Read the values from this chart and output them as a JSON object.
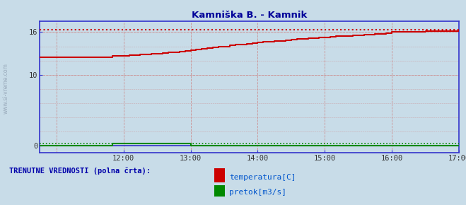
{
  "title": "Kamniška B. - Kamnik",
  "title_color": "#000099",
  "bg_color": "#c8dce8",
  "plot_bg_color": "#c8dce8",
  "xmin": 10.75,
  "xmax": 17.0,
  "ymin": -1.0,
  "ymax": 17.5,
  "xtick_positions": [
    12,
    13,
    14,
    15,
    16,
    17
  ],
  "xtick_labels": [
    "12:00",
    "13:00",
    "14:00",
    "15:00",
    "16:00",
    "17:00"
  ],
  "ytick_positions": [
    0,
    10,
    16
  ],
  "ytick_labels": [
    "0",
    "10",
    "16"
  ],
  "temp_color": "#cc0000",
  "flow_color": "#008800",
  "axis_color": "#3333cc",
  "grid_color_h": "#cc8888",
  "grid_color_v": "#cc8888",
  "watermark_color": "#99aabb",
  "legend_title": "TRENUTNE VREDNOSTI (polna črta):",
  "legend_label_temp": "temperatura[C]",
  "legend_label_flow": "pretok[m3/s]",
  "temp_x": [
    10.75,
    11.0,
    11.083,
    11.167,
    11.25,
    11.333,
    11.417,
    11.5,
    11.583,
    11.667,
    11.75,
    11.833,
    11.917,
    12.0,
    12.083,
    12.167,
    12.25,
    12.333,
    12.417,
    12.5,
    12.583,
    12.667,
    12.75,
    12.833,
    12.917,
    13.0,
    13.083,
    13.167,
    13.25,
    13.333,
    13.417,
    13.5,
    13.583,
    13.667,
    13.75,
    13.833,
    13.917,
    14.0,
    14.083,
    14.167,
    14.25,
    14.333,
    14.417,
    14.5,
    14.583,
    14.667,
    14.75,
    14.833,
    14.917,
    15.0,
    15.083,
    15.167,
    15.25,
    15.333,
    15.417,
    15.5,
    15.583,
    15.667,
    15.75,
    15.833,
    15.917,
    16.0,
    16.083,
    16.167,
    16.25,
    16.333,
    16.417,
    16.5,
    16.583,
    16.667,
    16.75,
    16.833,
    16.917,
    17.0
  ],
  "temp_y": [
    12.5,
    12.5,
    12.5,
    12.5,
    12.5,
    12.5,
    12.5,
    12.5,
    12.5,
    12.5,
    12.5,
    12.7,
    12.7,
    12.7,
    12.8,
    12.8,
    12.9,
    12.9,
    13.0,
    13.0,
    13.1,
    13.2,
    13.2,
    13.3,
    13.4,
    13.5,
    13.6,
    13.7,
    13.8,
    13.9,
    14.0,
    14.0,
    14.2,
    14.3,
    14.3,
    14.4,
    14.5,
    14.6,
    14.7,
    14.7,
    14.8,
    14.8,
    14.9,
    15.0,
    15.1,
    15.1,
    15.2,
    15.2,
    15.3,
    15.3,
    15.4,
    15.5,
    15.5,
    15.5,
    15.6,
    15.6,
    15.7,
    15.7,
    15.8,
    15.8,
    15.9,
    16.0,
    16.0,
    16.0,
    16.0,
    16.0,
    16.0,
    16.1,
    16.1,
    16.1,
    16.1,
    16.1,
    16.1,
    16.1
  ],
  "flow_x": [
    10.75,
    11.0,
    11.75,
    11.833,
    11.917,
    12.0,
    12.083,
    12.167,
    12.25,
    12.333,
    12.417,
    12.5,
    12.583,
    12.667,
    12.75,
    12.833,
    12.917,
    13.0,
    13.083,
    17.0
  ],
  "flow_y": [
    0.0,
    0.0,
    0.0,
    0.28,
    0.3,
    0.31,
    0.31,
    0.31,
    0.31,
    0.31,
    0.31,
    0.31,
    0.31,
    0.31,
    0.31,
    0.31,
    0.31,
    0.0,
    0.0,
    0.0
  ],
  "temp_dashed_y": 16.35,
  "flow_dashed_y": 0.31
}
